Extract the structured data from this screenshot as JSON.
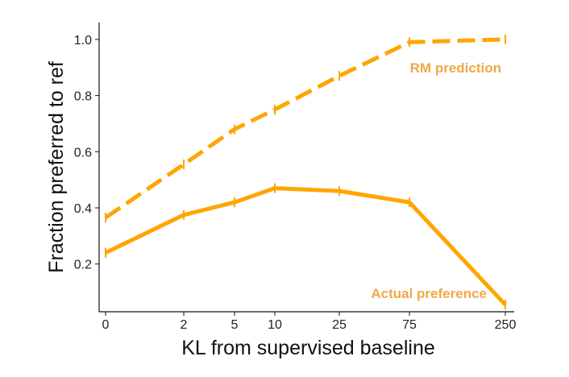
{
  "chart_data": {
    "type": "line",
    "xlabel": "KL from supervised baseline",
    "ylabel": "Fraction preferred to ref",
    "x_tick_labels": [
      "0",
      "2",
      "5",
      "10",
      "25",
      "75",
      "250"
    ],
    "y_tick_labels": [
      "0.2",
      "0.4",
      "0.6",
      "0.8",
      "1.0"
    ],
    "y_ticks": [
      0.2,
      0.4,
      0.6,
      0.8,
      1.0
    ],
    "ylim": [
      0.03,
      1.06
    ],
    "x_scale": "nonlinear (tick labels unevenly spaced)",
    "grid": false,
    "legend": "none (series labelled directly on the plot)",
    "series": [
      {
        "name": "RM prediction",
        "style": "dashed",
        "color": "#ffa500",
        "label_color": "#f0a848",
        "x": [
          0,
          2,
          5,
          10,
          25,
          75,
          250
        ],
        "values": [
          0.365,
          0.555,
          0.68,
          0.75,
          0.87,
          0.99,
          1.0
        ]
      },
      {
        "name": "Actual preference",
        "style": "solid",
        "color": "#ffa500",
        "label_color": "#f0a848",
        "x": [
          0,
          2,
          5,
          10,
          25,
          75,
          250
        ],
        "values": [
          0.24,
          0.375,
          0.42,
          0.47,
          0.46,
          0.42,
          0.055
        ]
      }
    ]
  }
}
